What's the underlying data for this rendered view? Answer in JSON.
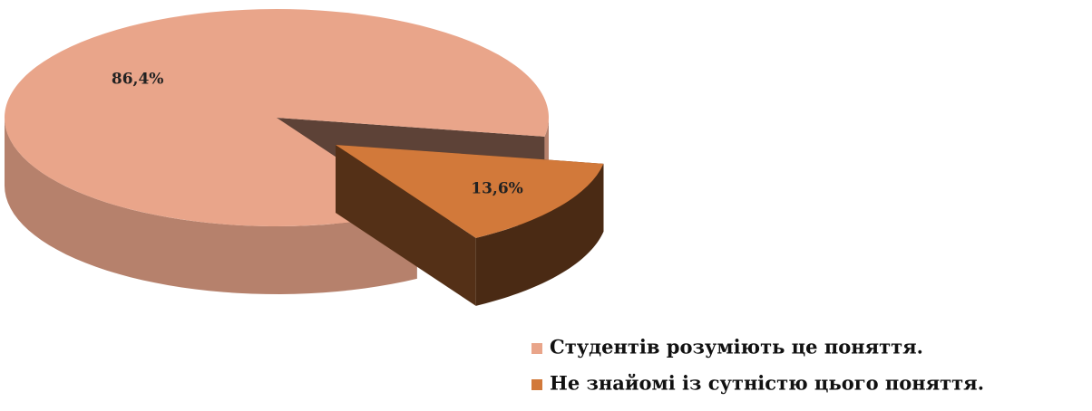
{
  "chart_data": {
    "type": "pie",
    "categories": [
      "Студентів розуміють це поняття.",
      "Не знайомі із сутністю цього поняття."
    ],
    "values": [
      86.4,
      13.6
    ],
    "value_labels": [
      "86,4%",
      "13,6%"
    ],
    "colors": [
      "#e9a58a",
      "#d2793a"
    ],
    "legend": "bottom-right"
  }
}
